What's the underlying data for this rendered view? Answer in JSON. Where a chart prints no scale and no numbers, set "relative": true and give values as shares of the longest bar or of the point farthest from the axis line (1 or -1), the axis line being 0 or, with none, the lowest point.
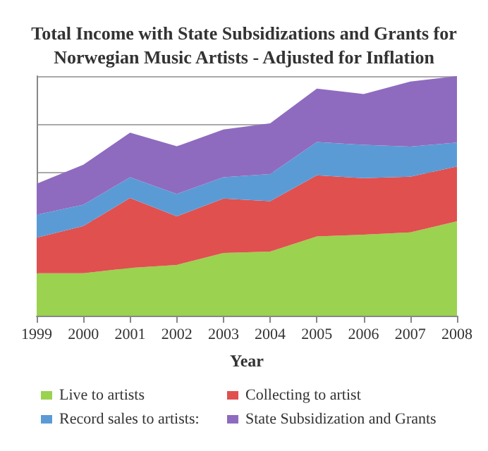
{
  "chart_data": {
    "type": "area",
    "title": "Total Income with State Subsidizations and Grants for\nNorwegian Music Artists - Adjusted for Inflation",
    "xlabel": "Year",
    "categories": [
      "1999",
      "2000",
      "2001",
      "2002",
      "2003",
      "2004",
      "2005",
      "2006",
      "2007",
      "2008"
    ],
    "relative": true,
    "stacked": true,
    "grid": "y",
    "legend": "bottom",
    "series": [
      {
        "name": "Live to artists",
        "color": "#9bd24f",
        "values": [
          0.177,
          0.177,
          0.199,
          0.212,
          0.262,
          0.268,
          0.331,
          0.338,
          0.348,
          0.394
        ]
      },
      {
        "name": "Collecting to artist",
        "color": "#e0504f",
        "values": [
          0.149,
          0.197,
          0.292,
          0.203,
          0.227,
          0.21,
          0.255,
          0.236,
          0.232,
          0.229
        ]
      },
      {
        "name": "Record sales to artists:",
        "color": "#5b9bd5",
        "values": [
          0.095,
          0.089,
          0.087,
          0.093,
          0.089,
          0.113,
          0.139,
          0.139,
          0.126,
          0.1
        ]
      },
      {
        "name": "State Subsidization and Grants",
        "color": "#8e6bbf",
        "values": [
          0.13,
          0.167,
          0.186,
          0.199,
          0.199,
          0.212,
          0.223,
          0.212,
          0.271,
          0.277
        ]
      }
    ]
  }
}
